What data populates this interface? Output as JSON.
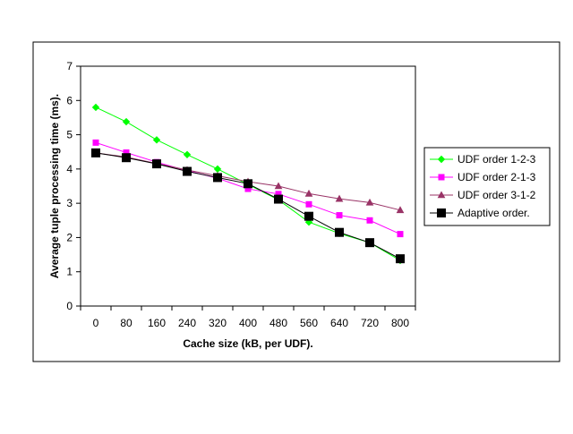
{
  "chart_data": {
    "type": "line",
    "title": "",
    "xlabel": "Cache size (kB, per UDF).",
    "ylabel": "Average tuple processing time (ms).",
    "categories": [
      "0",
      "80",
      "160",
      "240",
      "320",
      "400",
      "480",
      "560",
      "640",
      "720",
      "800"
    ],
    "ylim": [
      0,
      7
    ],
    "yticks": [
      0,
      1,
      2,
      3,
      4,
      5,
      6,
      7
    ],
    "grid": false,
    "legend_position": "right",
    "series": [
      {
        "name": "UDF order 1-2-3",
        "color": "#00ff00",
        "marker": "diamond",
        "values": [
          5.8,
          5.38,
          4.85,
          4.42,
          4.0,
          3.55,
          3.1,
          2.45,
          2.12,
          1.85,
          1.33
        ]
      },
      {
        "name": "UDF order 2-1-3",
        "color": "#ff00ff",
        "marker": "square",
        "values": [
          4.77,
          4.48,
          4.2,
          3.95,
          3.73,
          3.42,
          3.27,
          2.97,
          2.65,
          2.5,
          2.1
        ]
      },
      {
        "name": "UDF order 3-1-2",
        "color": "#993366",
        "marker": "triangle",
        "values": [
          4.47,
          4.35,
          4.16,
          3.97,
          3.8,
          3.63,
          3.5,
          3.28,
          3.13,
          3.02,
          2.8
        ]
      },
      {
        "name": "Adaptive order.",
        "color": "#000000",
        "marker": "square-large",
        "values": [
          4.47,
          4.33,
          4.15,
          3.93,
          3.75,
          3.57,
          3.12,
          2.62,
          2.15,
          1.85,
          1.38
        ]
      }
    ]
  }
}
